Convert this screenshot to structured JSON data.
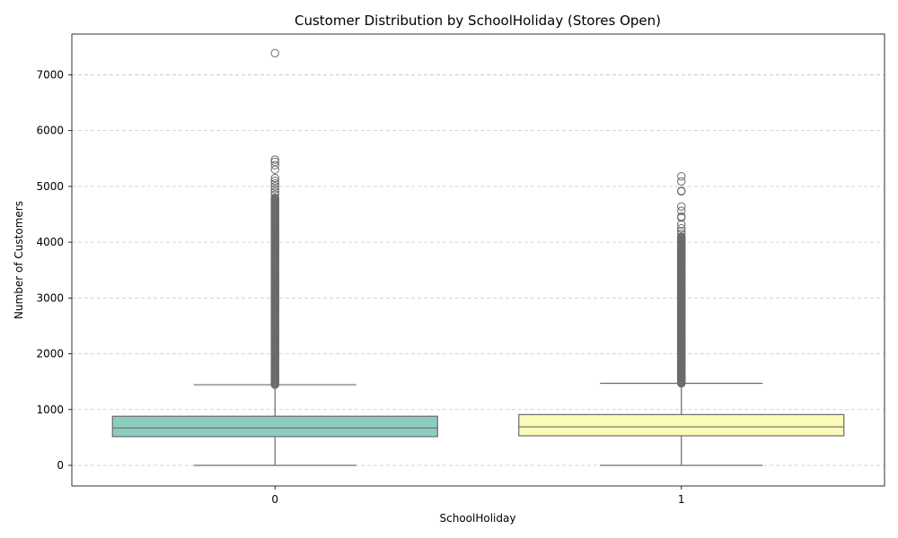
{
  "chart_data": {
    "type": "box",
    "title": "Customer Distribution by SchoolHoliday (Stores Open)",
    "xlabel": "SchoolHoliday",
    "ylabel": "Number of Customers",
    "ylim": [
      -370,
      7730
    ],
    "yticks": [
      0,
      1000,
      2000,
      3000,
      4000,
      5000,
      6000,
      7000
    ],
    "grid": "y-dashed",
    "categories": [
      "0",
      "1"
    ],
    "boxes": [
      {
        "category": "0",
        "color": "#8dcdc0",
        "q1": 515,
        "median": 670,
        "q3": 880,
        "whisker_low": 0,
        "whisker_high": 1445,
        "outlier_dense_range": [
          1445,
          4800
        ],
        "outliers": [
          4850,
          4900,
          4950,
          5000,
          5050,
          5100,
          5150,
          5300,
          5380,
          5440,
          5480,
          7388
        ]
      },
      {
        "category": "1",
        "color": "#fbfbb9",
        "q1": 530,
        "median": 690,
        "q3": 910,
        "whisker_low": 0,
        "whisker_high": 1470,
        "outlier_dense_range": [
          1470,
          4100
        ],
        "outliers": [
          4150,
          4200,
          4250,
          4320,
          4440,
          4460,
          4560,
          4640,
          4910,
          4920,
          5090,
          5180
        ]
      }
    ]
  }
}
